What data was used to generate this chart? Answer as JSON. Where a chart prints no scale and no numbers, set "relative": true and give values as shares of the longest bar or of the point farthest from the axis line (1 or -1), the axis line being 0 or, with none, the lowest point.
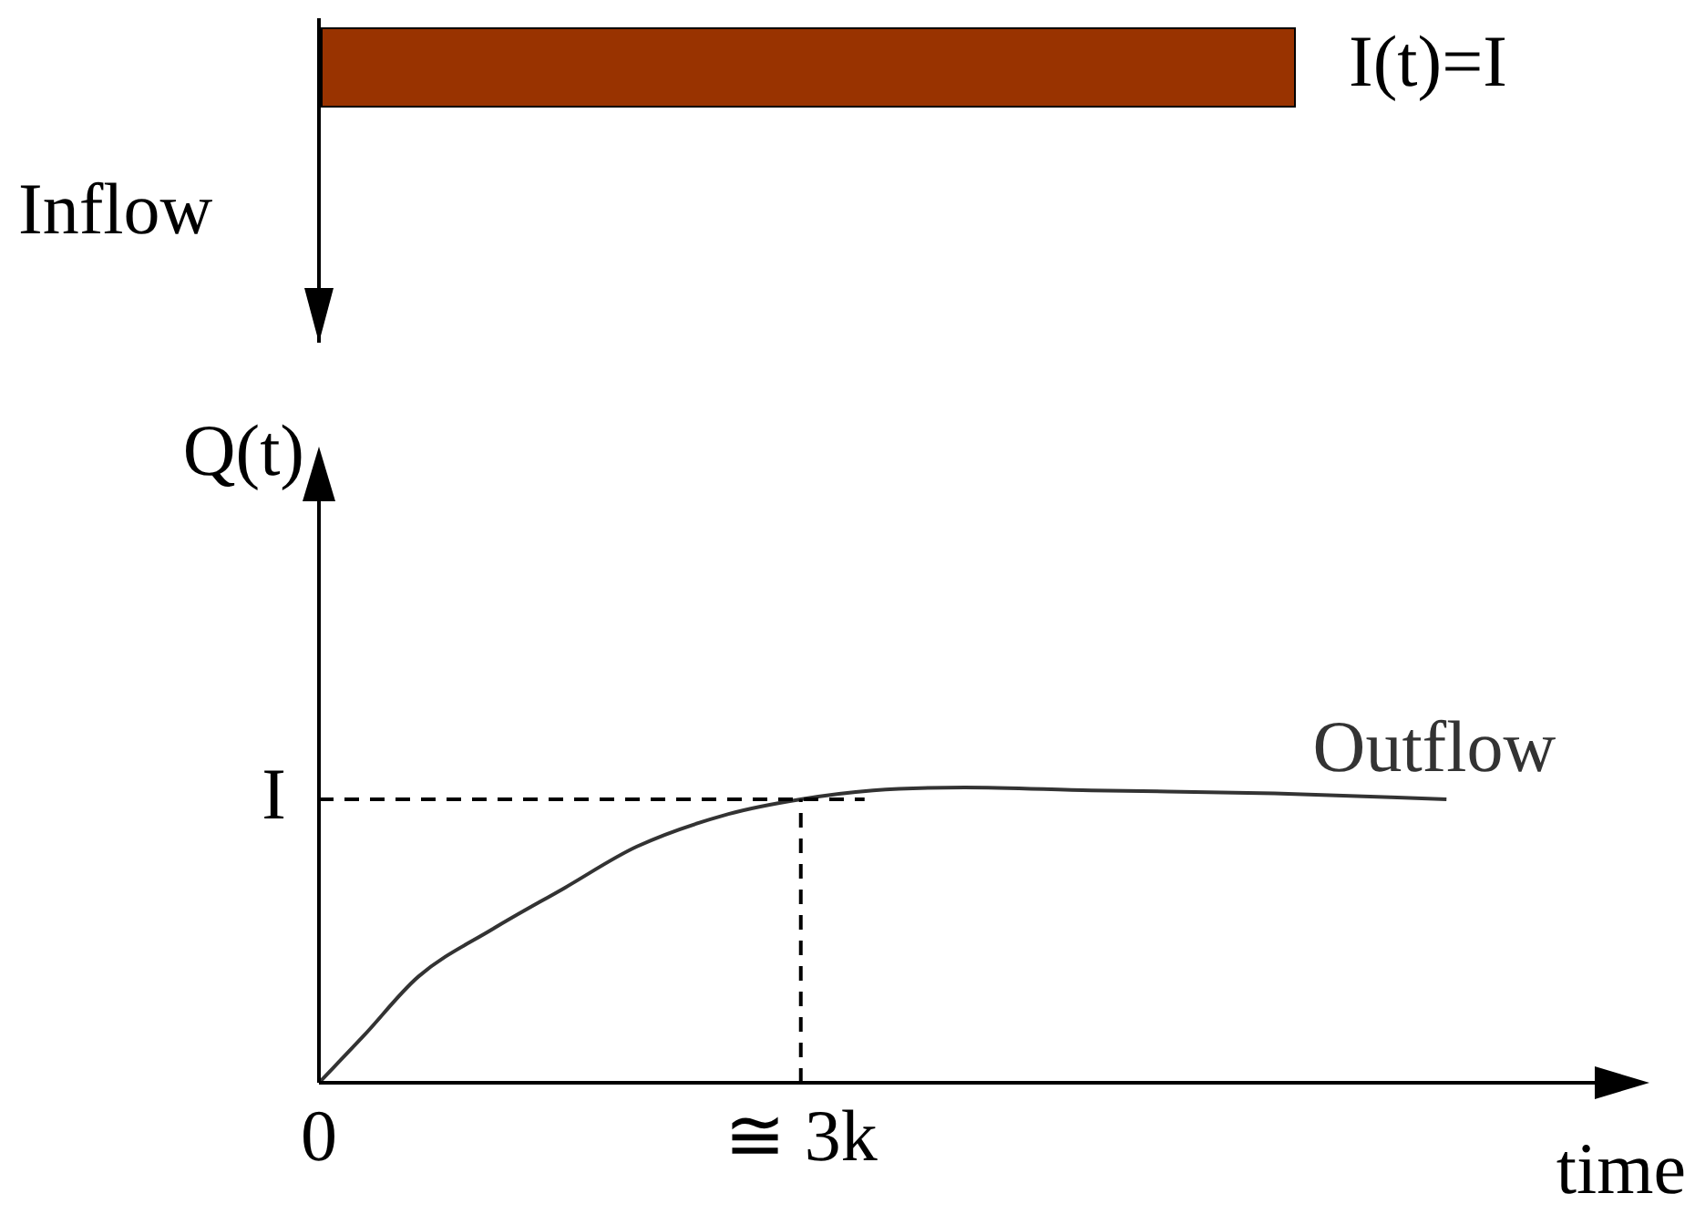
{
  "chart_data": {
    "type": "line",
    "xlabel": "time",
    "ylabel": "Q(t)",
    "annotations": [
      "Inflow",
      "I(t)=I"
    ],
    "relative": true,
    "x": [
      0,
      0.28,
      0.62,
      1.08,
      1.53,
      1.98,
      2.55,
      3.0,
      3.45,
      4.02,
      4.81,
      5.95,
      7.02
    ],
    "series": [
      {
        "name": "Outflow",
        "color": "#333333",
        "values": [
          0,
          0.16,
          0.36,
          0.52,
          0.66,
          0.8,
          0.91,
          0.96,
          0.99,
          1,
          0.99,
          0.98,
          0.96
        ]
      }
    ],
    "xlim": [
      0,
      8
    ],
    "xticks": [
      0,
      {
        "value": 3,
        "label": "≅ 3k"
      }
    ],
    "ref_lines": [
      {
        "axis": "y",
        "value": 0.96,
        "label": "I",
        "line_style": "dashed",
        "color": "#000000"
      },
      {
        "axis": "x",
        "value": 3,
        "line_style": "dashed",
        "color": "#000000"
      }
    ],
    "grid": false,
    "legend": false,
    "marker": "none",
    "line_style": "solid"
  }
}
